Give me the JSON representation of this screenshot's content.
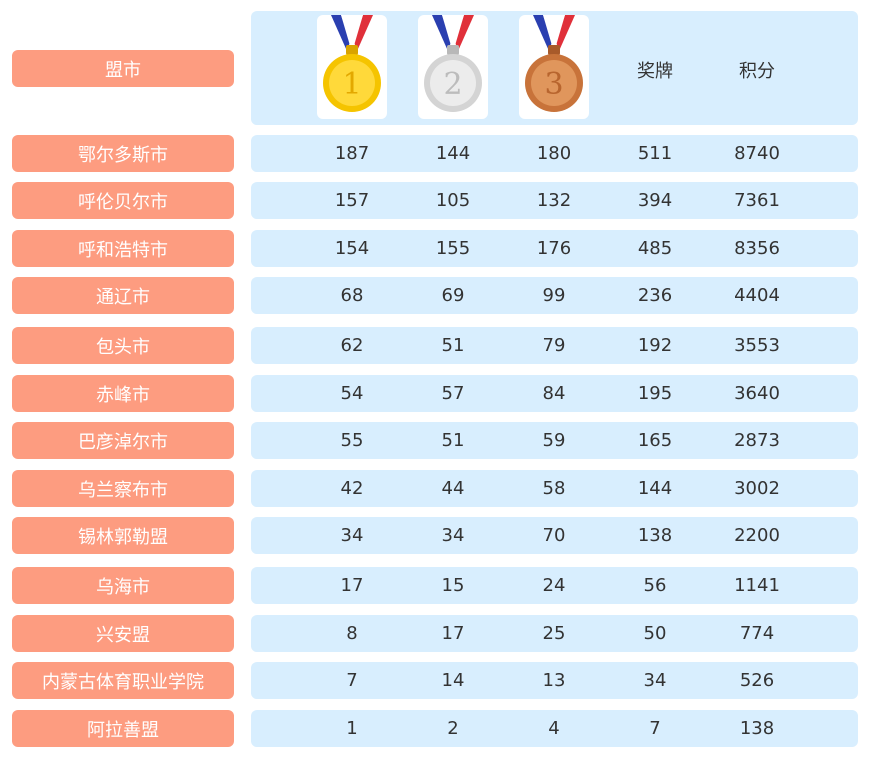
{
  "header": {
    "region_label": "盟市",
    "medals_label": "奖牌",
    "points_label": "积分",
    "gold_icon_number": "1",
    "silver_icon_number": "2",
    "bronze_icon_number": "3"
  },
  "colors": {
    "label_bg": "#fd9c80",
    "panel_bg": "#d8eefe",
    "ribbon_red": "#e0303a",
    "ribbon_blue": "#2a3fb0"
  },
  "rows": [
    {
      "name": "鄂尔多斯市",
      "gold": "187",
      "silver": "144",
      "bronze": "180",
      "medals": "511",
      "points": "8740"
    },
    {
      "name": "呼伦贝尔市",
      "gold": "157",
      "silver": "105",
      "bronze": "132",
      "medals": "394",
      "points": "7361"
    },
    {
      "name": "呼和浩特市",
      "gold": "154",
      "silver": "155",
      "bronze": "176",
      "medals": "485",
      "points": "8356"
    },
    {
      "name": "通辽市",
      "gold": "68",
      "silver": "69",
      "bronze": "99",
      "medals": "236",
      "points": "4404"
    },
    {
      "name": "包头市",
      "gold": "62",
      "silver": "51",
      "bronze": "79",
      "medals": "192",
      "points": "3553"
    },
    {
      "name": "赤峰市",
      "gold": "54",
      "silver": "57",
      "bronze": "84",
      "medals": "195",
      "points": "3640"
    },
    {
      "name": "巴彦淖尔市",
      "gold": "55",
      "silver": "51",
      "bronze": "59",
      "medals": "165",
      "points": "2873"
    },
    {
      "name": "乌兰察布市",
      "gold": "42",
      "silver": "44",
      "bronze": "58",
      "medals": "144",
      "points": "3002"
    },
    {
      "name": "锡林郭勒盟",
      "gold": "34",
      "silver": "34",
      "bronze": "70",
      "medals": "138",
      "points": "2200"
    },
    {
      "name": "乌海市",
      "gold": "17",
      "silver": "15",
      "bronze": "24",
      "medals": "56",
      "points": "1141"
    },
    {
      "name": "兴安盟",
      "gold": "8",
      "silver": "17",
      "bronze": "25",
      "medals": "50",
      "points": "774"
    },
    {
      "name": "内蒙古体育职业学院",
      "gold": "7",
      "silver": "14",
      "bronze": "13",
      "medals": "34",
      "points": "526"
    },
    {
      "name": "阿拉善盟",
      "gold": "1",
      "silver": "2",
      "bronze": "4",
      "medals": "7",
      "points": "138"
    }
  ]
}
